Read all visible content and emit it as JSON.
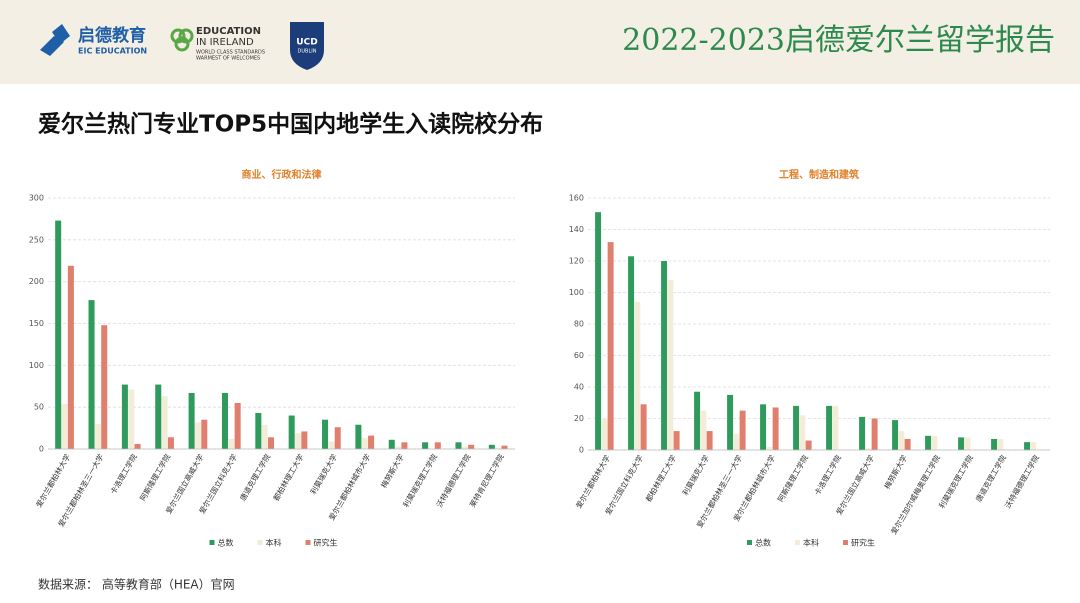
{
  "header": {
    "title": "2022-2023启德爱尔兰留学报告",
    "logo_eic_cn": "启德教育",
    "logo_eic_en": "EIC EDUCATION",
    "logo_eii_1": "EDUCATION",
    "logo_eii_2": "IN IRELAND",
    "logo_eii_3": "WORLD CLASS STANDARDS",
    "logo_eii_4": "WARMEST OF WELCOMES",
    "logo_ucd_1": "UCD",
    "logo_ucd_2": "DUBLIN"
  },
  "page_title": "爱尔兰热门专业TOP5中国内地学生入读院校分布",
  "source": "数据来源：  高等教育部（HEA）官网",
  "chart_data": [
    {
      "type": "bar",
      "title": "商业、行政和法律",
      "categories": [
        "爱尔兰都柏林大学",
        "爱尔兰都柏林圣三一大学",
        "卡洛理工学院",
        "阿斯隆理工学院",
        "爱尔兰国立高威大学",
        "爱尔兰国立科克大学",
        "唐道克理工学院",
        "都柏林理工大学",
        "利莫瑞克大学",
        "爱尔兰都柏林城市大学",
        "梅努斯大学",
        "利莫瑞克理工学院",
        "沃特福德理工学院",
        "莱特肯尼理工学院"
      ],
      "series": [
        {
          "name": "总数",
          "color": "#2e9a5c",
          "values": [
            273,
            178,
            77,
            77,
            67,
            67,
            43,
            40,
            35,
            29,
            11,
            8,
            8,
            5
          ]
        },
        {
          "name": "本科",
          "color": "#f3ecd8",
          "values": [
            54,
            30,
            71,
            63,
            32,
            12,
            29,
            19,
            9,
            13,
            3,
            0,
            3,
            1
          ]
        },
        {
          "name": "研究生",
          "color": "#e07f6e",
          "values": [
            219,
            148,
            6,
            14,
            35,
            55,
            14,
            21,
            26,
            16,
            8,
            8,
            5,
            4
          ]
        }
      ],
      "ylim": [
        0,
        300
      ],
      "yticks": [
        0,
        50,
        100,
        150,
        200,
        250,
        300
      ],
      "grid": true,
      "legend": "bottom"
    },
    {
      "type": "bar",
      "title": "工程、制造和建筑",
      "categories": [
        "爱尔兰都柏林大学",
        "爱尔兰国立科克大学",
        "都柏林理工大学",
        "利莫瑞克大学",
        "爱尔兰都柏林圣三一大学",
        "爱尔兰都柏林城市大学",
        "阿斯隆理工学院",
        "卡洛理工学院",
        "爱尔兰国立高威大学",
        "梅努斯大学",
        "爱尔兰加尔威梅奥理工学院",
        "利莫瑞克理工学院",
        "唐道克理工学院",
        "沃特福德理工学院"
      ],
      "series": [
        {
          "name": "总数",
          "color": "#2e9a5c",
          "values": [
            151,
            123,
            120,
            37,
            35,
            29,
            28,
            28,
            21,
            19,
            9,
            8,
            7,
            5
          ]
        },
        {
          "name": "本科",
          "color": "#f3ecd8",
          "values": [
            20,
            94,
            108,
            25,
            10,
            2,
            22,
            28,
            1,
            12,
            9,
            8,
            7,
            5
          ]
        },
        {
          "name": "研究生",
          "color": "#e07f6e",
          "values": [
            132,
            29,
            12,
            12,
            25,
            27,
            6,
            0,
            20,
            7,
            0,
            0,
            0,
            0
          ]
        }
      ],
      "ylim": [
        0,
        160
      ],
      "yticks": [
        0,
        20,
        40,
        60,
        80,
        100,
        120,
        140,
        160
      ],
      "grid": true,
      "legend": "bottom"
    }
  ]
}
